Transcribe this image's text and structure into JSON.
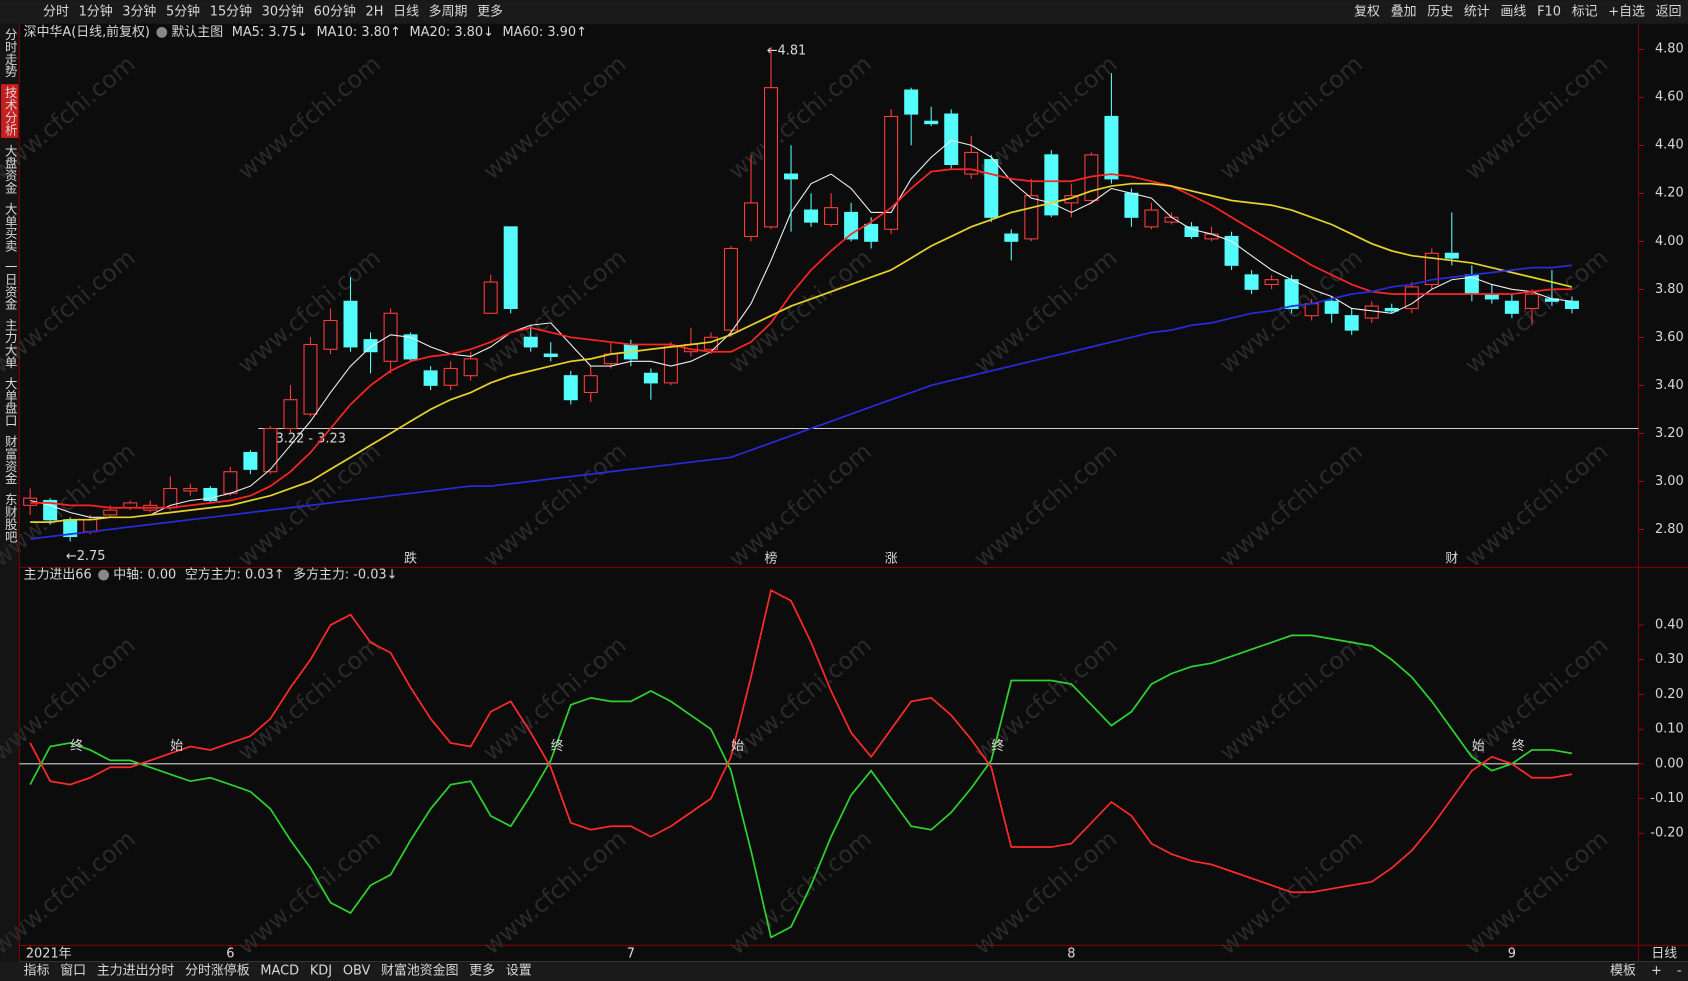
{
  "toolbar": {
    "left": [
      "分时",
      "1分钟",
      "3分钟",
      "5分钟",
      "15分钟",
      "30分钟",
      "60分钟",
      "2H",
      "日线",
      "多周期",
      "更多"
    ],
    "active_index": 8,
    "right": [
      "复权",
      "叠加",
      "历史",
      "统计",
      "画线",
      "F10",
      "标记",
      "+自选",
      "返回"
    ]
  },
  "sidebar": {
    "items": [
      "分时走势",
      "技术分析",
      "大盘资金",
      "大单买卖",
      "一日资金",
      "主力大单",
      "大单盘口",
      "财富资金",
      "东财股吧"
    ],
    "active_index": 1
  },
  "bottom_tabs": {
    "items": [
      "指标",
      "窗口",
      "主力进出分时",
      "分时涨停板",
      "MACD",
      "KDJ",
      "OBV",
      "财富池资金图",
      "更多",
      "设置"
    ],
    "active_index": 9,
    "right": [
      "模板",
      "+",
      "-"
    ],
    "period": "日线"
  },
  "watermark": "www.cfchi.com",
  "chart_data": [
    {
      "type": "candlestick",
      "title": "深中华A(日线,前复权)",
      "subtitle": "默认主图",
      "up_color": "#ff3c3c",
      "down_color": "#54fcfc",
      "ylim": [
        2.65,
        4.87
      ],
      "yticks": [
        {
          "value": 2.8,
          "label": "2.80"
        },
        {
          "value": 3.0,
          "label": "3.00"
        },
        {
          "value": 3.2,
          "label": "3.20"
        },
        {
          "value": 3.4,
          "label": "3.40"
        },
        {
          "value": 3.6,
          "label": "3.60"
        },
        {
          "value": 3.8,
          "label": "3.80"
        },
        {
          "value": 4.0,
          "label": "4.00"
        },
        {
          "value": 4.2,
          "label": "4.20"
        },
        {
          "value": 4.4,
          "label": "4.40"
        },
        {
          "value": 4.6,
          "label": "4.60"
        },
        {
          "value": 4.8,
          "label": "4.80"
        }
      ],
      "xticks": [
        {
          "value": 0,
          "label": "2021年"
        },
        {
          "value": 10,
          "label": "6"
        },
        {
          "value": 30,
          "label": "7"
        },
        {
          "value": 52,
          "label": "8"
        },
        {
          "value": 74,
          "label": "9"
        }
      ],
      "open": [
        2.9,
        2.92,
        2.84,
        2.79,
        2.86,
        2.89,
        2.88,
        2.89,
        2.96,
        2.97,
        2.95,
        3.12,
        3.04,
        3.22,
        3.28,
        3.55,
        3.75,
        3.59,
        3.5,
        3.61,
        3.46,
        3.4,
        3.44,
        3.7,
        4.06,
        3.6,
        3.53,
        3.44,
        3.37,
        3.49,
        3.57,
        3.45,
        3.41,
        3.54,
        3.55,
        3.63,
        4.02,
        4.06,
        4.28,
        4.13,
        4.07,
        4.12,
        4.07,
        4.05,
        4.63,
        4.5,
        4.53,
        4.28,
        4.34,
        4.03,
        4.01,
        4.36,
        4.16,
        4.17,
        4.52,
        4.2,
        4.06,
        4.08,
        4.06,
        4.01,
        4.02,
        3.86,
        3.82,
        3.84,
        3.69,
        3.75,
        3.69,
        3.68,
        3.72,
        3.72,
        3.82,
        3.95,
        3.86,
        3.78,
        3.75,
        3.72,
        3.76,
        3.75
      ],
      "close": [
        2.93,
        2.84,
        2.77,
        2.84,
        2.88,
        2.91,
        2.9,
        2.97,
        2.97,
        2.92,
        3.04,
        3.05,
        3.22,
        3.34,
        3.57,
        3.67,
        3.56,
        3.54,
        3.7,
        3.51,
        3.4,
        3.47,
        3.51,
        3.83,
        3.72,
        3.56,
        3.52,
        3.34,
        3.44,
        3.53,
        3.51,
        3.41,
        3.56,
        3.57,
        3.6,
        3.97,
        4.16,
        4.64,
        4.26,
        4.08,
        4.14,
        4.01,
        4.0,
        4.52,
        4.53,
        4.49,
        4.32,
        4.37,
        4.1,
        4.0,
        4.19,
        4.11,
        4.19,
        4.36,
        4.26,
        4.1,
        4.13,
        4.1,
        4.02,
        4.03,
        3.9,
        3.8,
        3.84,
        3.72,
        3.74,
        3.7,
        3.63,
        3.73,
        3.71,
        3.81,
        3.95,
        3.93,
        3.78,
        3.76,
        3.7,
        3.78,
        3.75,
        3.72
      ],
      "high": [
        2.97,
        2.93,
        2.85,
        2.86,
        2.9,
        2.92,
        2.92,
        3.02,
        2.99,
        2.98,
        3.06,
        3.13,
        3.23,
        3.4,
        3.6,
        3.72,
        3.85,
        3.62,
        3.72,
        3.62,
        3.48,
        3.5,
        3.54,
        3.86,
        4.06,
        3.65,
        3.58,
        3.46,
        3.48,
        3.58,
        3.59,
        3.47,
        3.58,
        3.64,
        3.62,
        3.98,
        4.36,
        4.81,
        4.4,
        4.2,
        4.2,
        4.16,
        4.1,
        4.55,
        4.64,
        4.56,
        4.55,
        4.44,
        4.36,
        4.05,
        4.26,
        4.38,
        4.24,
        4.37,
        4.7,
        4.22,
        4.16,
        4.12,
        4.08,
        4.06,
        4.04,
        3.88,
        3.86,
        3.86,
        3.76,
        3.77,
        3.72,
        3.75,
        3.74,
        3.83,
        3.97,
        4.12,
        3.9,
        3.82,
        3.78,
        3.8,
        3.88,
        3.77
      ],
      "low": [
        2.86,
        2.82,
        2.75,
        2.78,
        2.85,
        2.88,
        2.87,
        2.88,
        2.94,
        2.91,
        2.94,
        3.03,
        3.03,
        3.2,
        3.27,
        3.53,
        3.54,
        3.45,
        3.45,
        3.5,
        3.38,
        3.38,
        3.42,
        3.7,
        3.7,
        3.54,
        3.5,
        3.32,
        3.33,
        3.47,
        3.48,
        3.34,
        3.4,
        3.52,
        3.53,
        3.6,
        4.0,
        4.05,
        4.04,
        4.06,
        4.06,
        4.0,
        3.97,
        4.03,
        4.4,
        4.48,
        4.3,
        4.26,
        4.08,
        3.92,
        4.0,
        4.1,
        4.1,
        4.16,
        4.24,
        4.06,
        4.05,
        4.07,
        4.01,
        4.0,
        3.88,
        3.78,
        3.8,
        3.7,
        3.67,
        3.66,
        3.61,
        3.66,
        3.7,
        3.7,
        3.8,
        3.9,
        3.75,
        3.74,
        3.68,
        3.65,
        3.73,
        3.7
      ],
      "series": [
        {
          "name": "MA5: 3.75↓",
          "color": "#f0f0f0",
          "values": [
            2.92,
            2.9,
            2.87,
            2.85,
            2.85,
            2.85,
            2.86,
            2.9,
            2.92,
            2.93,
            2.95,
            2.98,
            3.05,
            3.15,
            3.25,
            3.37,
            3.48,
            3.56,
            3.61,
            3.6,
            3.56,
            3.53,
            3.52,
            3.56,
            3.62,
            3.65,
            3.66,
            3.57,
            3.48,
            3.48,
            3.5,
            3.5,
            3.48,
            3.5,
            3.54,
            3.62,
            3.74,
            3.92,
            4.12,
            4.24,
            4.28,
            4.22,
            4.12,
            4.12,
            4.26,
            4.35,
            4.42,
            4.4,
            4.35,
            4.25,
            4.18,
            4.16,
            4.12,
            4.16,
            4.22,
            4.2,
            4.18,
            4.1,
            4.05,
            4.03,
            4.0,
            3.94,
            3.88,
            3.84,
            3.8,
            3.77,
            3.72,
            3.71,
            3.7,
            3.74,
            3.8,
            3.84,
            3.85,
            3.82,
            3.8,
            3.79,
            3.76,
            3.75
          ]
        },
        {
          "name": "MA10: 3.80↑",
          "color": "#ff2424",
          "values": [
            2.91,
            2.91,
            2.9,
            2.9,
            2.89,
            2.89,
            2.89,
            2.89,
            2.9,
            2.91,
            2.92,
            2.94,
            2.98,
            3.04,
            3.12,
            3.22,
            3.32,
            3.4,
            3.46,
            3.5,
            3.52,
            3.53,
            3.55,
            3.58,
            3.62,
            3.64,
            3.62,
            3.6,
            3.59,
            3.58,
            3.57,
            3.57,
            3.57,
            3.55,
            3.54,
            3.54,
            3.58,
            3.66,
            3.78,
            3.88,
            3.96,
            4.03,
            4.08,
            4.14,
            4.22,
            4.29,
            4.3,
            4.3,
            4.28,
            4.26,
            4.25,
            4.25,
            4.25,
            4.27,
            4.28,
            4.27,
            4.25,
            4.23,
            4.19,
            4.15,
            4.1,
            4.05,
            4.0,
            3.95,
            3.9,
            3.86,
            3.82,
            3.79,
            3.78,
            3.78,
            3.78,
            3.78,
            3.78,
            3.78,
            3.78,
            3.79,
            3.8,
            3.8
          ]
        },
        {
          "name": "MA20: 3.80↓",
          "color": "#e6d22a",
          "values": [
            2.83,
            2.83,
            2.84,
            2.84,
            2.85,
            2.85,
            2.86,
            2.87,
            2.88,
            2.89,
            2.9,
            2.92,
            2.94,
            2.97,
            3.0,
            3.05,
            3.1,
            3.15,
            3.2,
            3.25,
            3.3,
            3.34,
            3.37,
            3.41,
            3.44,
            3.46,
            3.48,
            3.5,
            3.51,
            3.53,
            3.54,
            3.55,
            3.56,
            3.57,
            3.58,
            3.61,
            3.65,
            3.69,
            3.73,
            3.76,
            3.79,
            3.82,
            3.85,
            3.88,
            3.93,
            3.98,
            4.02,
            4.06,
            4.09,
            4.12,
            4.14,
            4.16,
            4.18,
            4.21,
            4.23,
            4.24,
            4.24,
            4.23,
            4.21,
            4.19,
            4.17,
            4.16,
            4.15,
            4.13,
            4.1,
            4.07,
            4.03,
            3.99,
            3.96,
            3.94,
            3.93,
            3.92,
            3.91,
            3.89,
            3.87,
            3.85,
            3.83,
            3.81
          ]
        },
        {
          "name": "MA60: 3.90↑",
          "color": "#2a2ad8",
          "values": [
            2.76,
            2.77,
            2.78,
            2.79,
            2.8,
            2.81,
            2.82,
            2.83,
            2.84,
            2.85,
            2.86,
            2.87,
            2.88,
            2.89,
            2.9,
            2.91,
            2.92,
            2.93,
            2.94,
            2.95,
            2.96,
            2.97,
            2.98,
            2.98,
            2.99,
            3.0,
            3.01,
            3.02,
            3.03,
            3.04,
            3.05,
            3.06,
            3.07,
            3.08,
            3.09,
            3.1,
            3.13,
            3.16,
            3.19,
            3.22,
            3.25,
            3.28,
            3.31,
            3.34,
            3.37,
            3.4,
            3.42,
            3.44,
            3.46,
            3.48,
            3.5,
            3.52,
            3.54,
            3.56,
            3.58,
            3.6,
            3.62,
            3.63,
            3.65,
            3.66,
            3.68,
            3.7,
            3.71,
            3.73,
            3.74,
            3.76,
            3.78,
            3.79,
            3.81,
            3.82,
            3.84,
            3.85,
            3.86,
            3.87,
            3.88,
            3.89,
            3.89,
            3.9
          ]
        }
      ],
      "extremes": [
        {
          "text": "←4.81",
          "index": 37,
          "at": "high"
        },
        {
          "text": "←2.75",
          "index": 2,
          "at": "low"
        }
      ],
      "level_line": {
        "text": "3.22 - 3.23",
        "value": 3.22
      },
      "events": [
        {
          "text": "跌",
          "index": 19,
          "color": "#3cd23c"
        },
        {
          "text": "榜",
          "index": 37,
          "color": "#ff9a2a"
        },
        {
          "text": "涨",
          "index": 43,
          "color": "#ff4040"
        },
        {
          "text": "财",
          "index": 71,
          "color": "#54c8fc"
        }
      ]
    },
    {
      "type": "line",
      "title": "主力进出66",
      "subtitle": "中轴: 0.00",
      "midline": 0,
      "ylim": [
        -0.52,
        0.51
      ],
      "yticks": [
        {
          "value": 0.4,
          "label": "0.40"
        },
        {
          "value": 0.3,
          "label": "0.30"
        },
        {
          "value": 0.2,
          "label": "0.20"
        },
        {
          "value": 0.1,
          "label": "0.10"
        },
        {
          "value": 0,
          "label": "0.00"
        },
        {
          "value": -0.1,
          "label": "-0.10"
        },
        {
          "value": -0.2,
          "label": "-0.20"
        }
      ],
      "series": [
        {
          "name": "空方主力: 0.03↑",
          "color": "#2ed22e",
          "values": [
            -0.06,
            0.05,
            0.06,
            0.04,
            0.01,
            0.01,
            -0.01,
            -0.03,
            -0.05,
            -0.04,
            -0.06,
            -0.08,
            -0.13,
            -0.22,
            -0.3,
            -0.4,
            -0.43,
            -0.35,
            -0.32,
            -0.22,
            -0.13,
            -0.06,
            -0.05,
            -0.15,
            -0.18,
            -0.09,
            0.01,
            0.17,
            0.19,
            0.18,
            0.18,
            0.21,
            0.18,
            0.14,
            0.1,
            -0.02,
            -0.25,
            -0.5,
            -0.47,
            -0.35,
            -0.21,
            -0.09,
            -0.02,
            -0.1,
            -0.18,
            -0.19,
            -0.14,
            -0.07,
            0.01,
            0.24,
            0.24,
            0.24,
            0.23,
            0.17,
            0.11,
            0.15,
            0.23,
            0.26,
            0.28,
            0.29,
            0.31,
            0.33,
            0.35,
            0.37,
            0.37,
            0.36,
            0.35,
            0.34,
            0.3,
            0.25,
            0.18,
            0.1,
            0.02,
            -0.02,
            0.0,
            0.04,
            0.04,
            0.03
          ]
        },
        {
          "name": "多方主力: -0.03↓",
          "color": "#ff2a2a",
          "values": [
            0.06,
            -0.05,
            -0.06,
            -0.04,
            -0.01,
            -0.01,
            0.01,
            0.03,
            0.05,
            0.04,
            0.06,
            0.08,
            0.13,
            0.22,
            0.3,
            0.4,
            0.43,
            0.35,
            0.32,
            0.22,
            0.13,
            0.06,
            0.05,
            0.15,
            0.18,
            0.09,
            -0.01,
            -0.17,
            -0.19,
            -0.18,
            -0.18,
            -0.21,
            -0.18,
            -0.14,
            -0.1,
            0.02,
            0.25,
            0.5,
            0.47,
            0.35,
            0.21,
            0.09,
            0.02,
            0.1,
            0.18,
            0.19,
            0.14,
            0.07,
            -0.01,
            -0.24,
            -0.24,
            -0.24,
            -0.23,
            -0.17,
            -0.11,
            -0.15,
            -0.23,
            -0.26,
            -0.28,
            -0.29,
            -0.31,
            -0.33,
            -0.35,
            -0.37,
            -0.37,
            -0.36,
            -0.35,
            -0.34,
            -0.3,
            -0.25,
            -0.18,
            -0.1,
            -0.02,
            0.02,
            0.0,
            -0.04,
            -0.04,
            -0.03
          ]
        }
      ],
      "markers": [
        {
          "text": "终",
          "index": 2
        },
        {
          "text": "始",
          "index": 7
        },
        {
          "text": "终",
          "index": 26
        },
        {
          "text": "始",
          "index": 35
        },
        {
          "text": "终",
          "index": 48
        },
        {
          "text": "始",
          "index": 72
        },
        {
          "text": "终",
          "index": 74
        }
      ]
    }
  ]
}
